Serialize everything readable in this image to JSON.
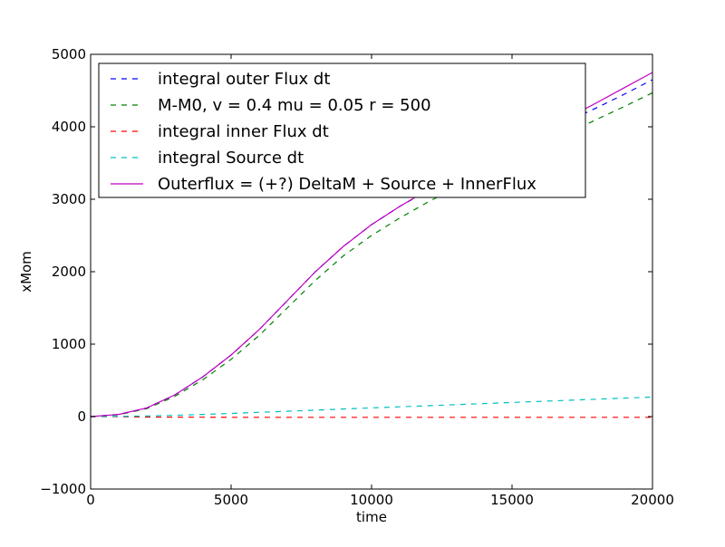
{
  "chart_data": {
    "type": "line",
    "title": "",
    "xlabel": "time",
    "ylabel": "xMom",
    "xlim": [
      0,
      20000
    ],
    "ylim": [
      -1000,
      5000
    ],
    "xticks": [
      0,
      5000,
      10000,
      15000,
      20000
    ],
    "xtick_labels": [
      "0",
      "5000",
      "10000",
      "15000",
      "20000"
    ],
    "yticks": [
      -1000,
      0,
      1000,
      2000,
      3000,
      4000,
      5000
    ],
    "ytick_labels": [
      "−1000",
      "0",
      "1000",
      "2000",
      "3000",
      "4000",
      "5000"
    ],
    "grid": false,
    "legend_position": "upper-left",
    "x": [
      0,
      1000,
      2000,
      3000,
      4000,
      5000,
      6000,
      7000,
      8000,
      9000,
      10000,
      11000,
      12000,
      13000,
      14000,
      15000,
      16000,
      17000,
      18000,
      19000,
      20000
    ],
    "series": [
      {
        "name": "integral outer Flux dt",
        "color": "#0000ff",
        "style": "dashed",
        "values": [
          0,
          30,
          120,
          300,
          550,
          850,
          1200,
          1600,
          2000,
          2350,
          2650,
          2900,
          3120,
          3330,
          3530,
          3720,
          3900,
          4080,
          4260,
          4450,
          4650
        ]
      },
      {
        "name": "M-M0, v = 0.4 mu = 0.05 r = 500",
        "color": "#008000",
        "style": "dashed",
        "values": [
          0,
          25,
          110,
          280,
          510,
          790,
          1120,
          1500,
          1880,
          2220,
          2500,
          2740,
          2960,
          3160,
          3360,
          3550,
          3730,
          3910,
          4100,
          4280,
          4470
        ]
      },
      {
        "name": "integral inner Flux dt",
        "color": "#ff0000",
        "style": "dashed",
        "values": [
          0,
          -3,
          -6,
          -8,
          -9,
          -10,
          -10,
          -10,
          -10,
          -10,
          -10,
          -10,
          -10,
          -10,
          -10,
          -10,
          -10,
          -10,
          -10,
          -10,
          -10
        ]
      },
      {
        "name": "integral Source dt",
        "color": "#00bfbf",
        "style": "dashed",
        "values": [
          0,
          3,
          9,
          18,
          30,
          44,
          59,
          74,
          89,
          105,
          120,
          135,
          150,
          165,
          180,
          195,
          210,
          225,
          240,
          255,
          270
        ]
      },
      {
        "name": "Outerflux = (+?) DeltaM + Source + InnerFlux",
        "color": "#bf00bf",
        "style": "solid",
        "values": [
          0,
          30,
          120,
          300,
          550,
          850,
          1200,
          1600,
          2000,
          2350,
          2650,
          2900,
          3130,
          3345,
          3550,
          3745,
          3935,
          4125,
          4330,
          4540,
          4750
        ]
      }
    ]
  }
}
